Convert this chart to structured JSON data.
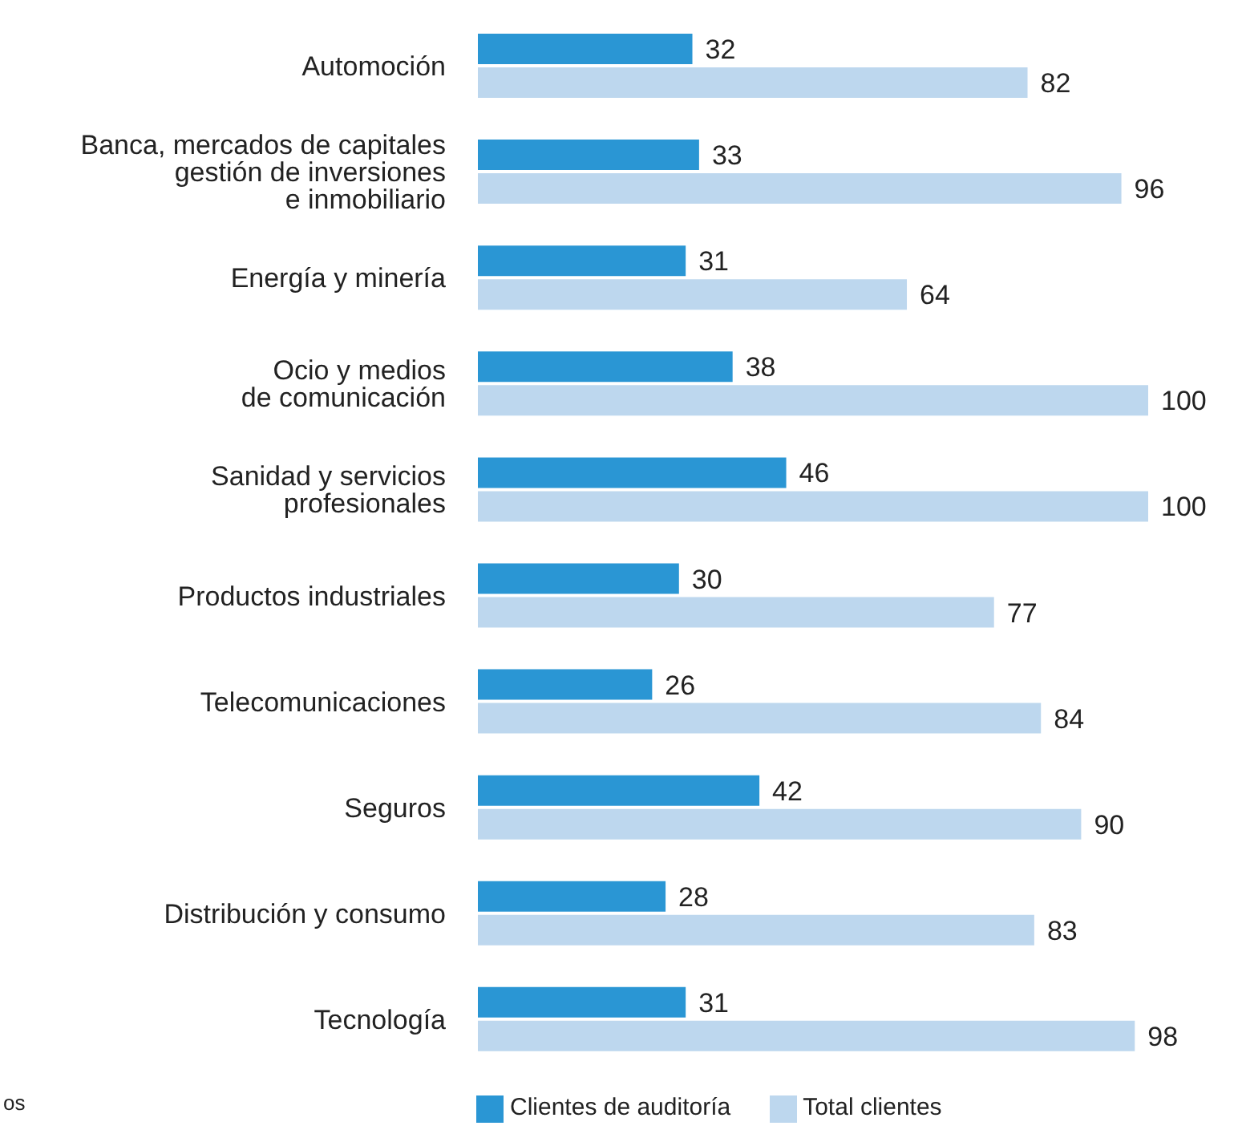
{
  "chart_data": {
    "type": "bar",
    "orientation": "horizontal",
    "data_labels": true,
    "legend": "bottom",
    "categories": [
      "Automoción",
      "Banca, mercados de capitales\ngestión de inversiones\ne inmobiliario",
      "Energía y minería",
      "Ocio y medios\nde comunicación",
      "Sanidad y servicios\nprofesionales",
      "Productos industriales",
      "Telecomunicaciones",
      "Seguros",
      "Distribución y consumo",
      "Tecnología"
    ],
    "series": [
      {
        "name": "Clientes de auditoría",
        "color": "#2a96d4",
        "values": [
          32,
          33,
          31,
          38,
          46,
          30,
          26,
          42,
          28,
          31
        ]
      },
      {
        "name": "Total clientes",
        "color": "#bdd7ee",
        "values": [
          82,
          96,
          64,
          100,
          100,
          77,
          84,
          90,
          83,
          98
        ]
      }
    ],
    "annotations": [
      "os"
    ]
  }
}
